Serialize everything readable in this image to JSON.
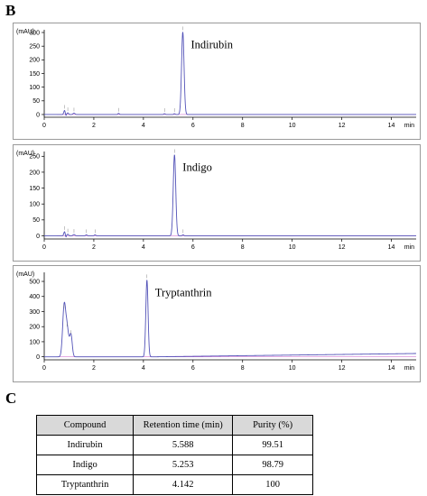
{
  "panel_b_label": "B",
  "panel_c_label": "C",
  "colors": {
    "trace": "#5353b8",
    "baseline": "#d47ad4",
    "frame": "#9a9a9a"
  },
  "chart_data": [
    {
      "type": "line",
      "ylabel": "(mAU)",
      "xunit": "min",
      "annotation": "Indirubin",
      "xlim": [
        0,
        15
      ],
      "ylim": [
        -10,
        310
      ],
      "xticks": [
        0,
        2,
        4,
        6,
        8,
        10,
        12,
        14
      ],
      "yticks": [
        0,
        50,
        100,
        150,
        200,
        250,
        300
      ],
      "peaks": [
        {
          "rt": 0.82,
          "height": 15,
          "width": 0.03
        },
        {
          "rt": 0.95,
          "height": 6,
          "width": 0.03
        },
        {
          "rt": 1.2,
          "height": 5,
          "width": 0.04
        },
        {
          "rt": 3.0,
          "height": 4,
          "width": 0.03
        },
        {
          "rt": 4.85,
          "height": 3,
          "width": 0.03
        },
        {
          "rt": 5.25,
          "height": 3,
          "width": 0.03
        },
        {
          "rt": 5.588,
          "height": 302,
          "width": 0.05
        }
      ],
      "labeled_peak": 5.588
    },
    {
      "type": "line",
      "ylabel": "(mAU)",
      "xunit": "min",
      "annotation": "Indigo",
      "xlim": [
        0,
        15
      ],
      "ylim": [
        -10,
        265
      ],
      "xticks": [
        0,
        2,
        4,
        6,
        8,
        10,
        12,
        14
      ],
      "yticks": [
        0,
        50,
        100,
        150,
        200,
        250
      ],
      "peaks": [
        {
          "rt": 0.82,
          "height": 13,
          "width": 0.03
        },
        {
          "rt": 0.95,
          "height": 5,
          "width": 0.03
        },
        {
          "rt": 1.2,
          "height": 4,
          "width": 0.04
        },
        {
          "rt": 1.7,
          "height": 3,
          "width": 0.03
        },
        {
          "rt": 2.05,
          "height": 3,
          "width": 0.03
        },
        {
          "rt": 5.253,
          "height": 255,
          "width": 0.05
        },
        {
          "rt": 5.6,
          "height": 3,
          "width": 0.03
        }
      ],
      "labeled_peak": 5.253
    },
    {
      "type": "line",
      "ylabel": "(mAU)",
      "xunit": "min",
      "annotation": "Tryptanthrin",
      "xlim": [
        0,
        15
      ],
      "ylim": [
        -20,
        560
      ],
      "xticks": [
        0,
        2,
        4,
        6,
        8,
        10,
        12,
        14
      ],
      "yticks": [
        0,
        100,
        200,
        300,
        400,
        500
      ],
      "peaks": [
        {
          "rt": 0.8,
          "height": 310,
          "width": 0.06
        },
        {
          "rt": 0.92,
          "height": 190,
          "width": 0.07
        },
        {
          "rt": 1.08,
          "height": 140,
          "width": 0.05
        },
        {
          "rt": 4.142,
          "height": 510,
          "width": 0.045
        }
      ],
      "baseline_drift_end": 22,
      "labeled_peak": 4.142
    }
  ],
  "table": {
    "headers": [
      "Compound",
      "Retention time (min)",
      "Purity (%)"
    ],
    "rows": [
      [
        "Indirubin",
        "5.588",
        "99.51"
      ],
      [
        "Indigo",
        "5.253",
        "98.79"
      ],
      [
        "Tryptanthrin",
        "4.142",
        "100"
      ]
    ]
  }
}
